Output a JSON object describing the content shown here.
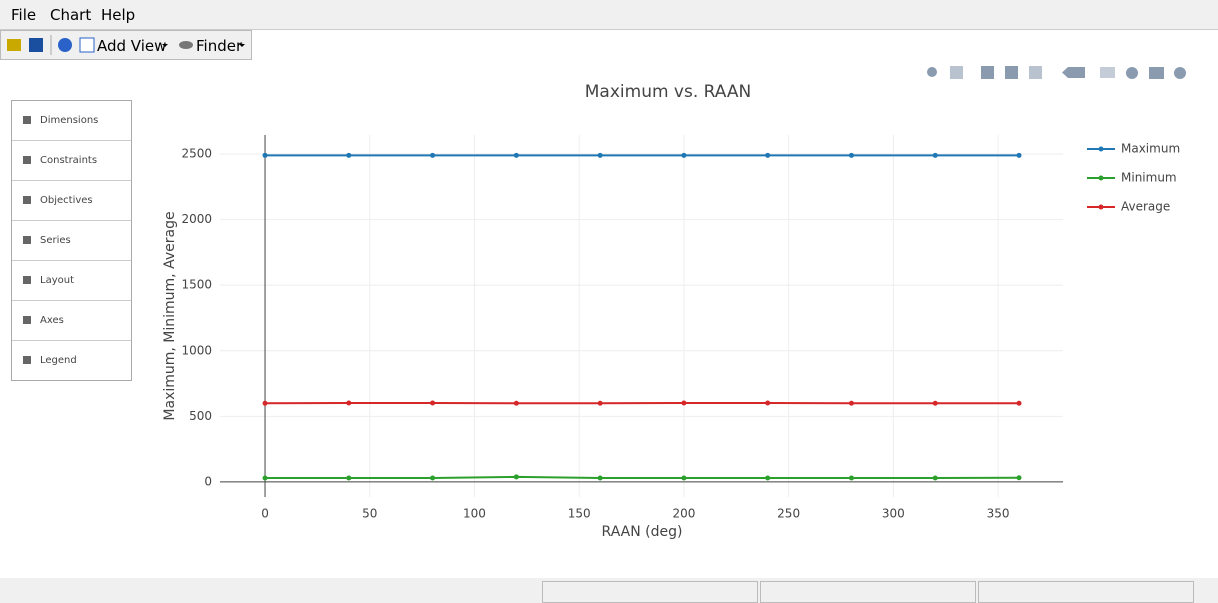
{
  "menu": [
    "File",
    "Chart",
    "Help"
  ],
  "toolbar": [
    "Add View",
    "Finder"
  ],
  "side_panel": [
    "Dimensions",
    "Constraints",
    "Objectives",
    "Series",
    "Layout",
    "Axes",
    "Legend"
  ],
  "chart_data": {
    "type": "line",
    "title": "Maximum vs. RAAN",
    "x_label": "RAAN (deg)",
    "y_label": "Maximum, Minimum, Average",
    "x": [
      0,
      40,
      80,
      120,
      160,
      200,
      240,
      280,
      320,
      360
    ],
    "series": [
      {
        "name": "Maximum",
        "color": "#1f77b4",
        "values": [
          2490,
          2490,
          2490,
          2490,
          2490,
          2490,
          2490,
          2490,
          2490,
          2490
        ]
      },
      {
        "name": "Minimum",
        "color": "#2ca02c",
        "values": [
          30,
          30,
          30,
          38,
          30,
          30,
          30,
          30,
          30,
          32
        ]
      },
      {
        "name": "Average",
        "color": "#d62728",
        "values": [
          600,
          602,
          602,
          600,
          600,
          602,
          602,
          600,
          600,
          600
        ]
      }
    ],
    "xlim": [
      -21.5,
      381
    ],
    "xticks": [
      0,
      50,
      100,
      150,
      200,
      250,
      300,
      350
    ],
    "ylim": [
      -115,
      2645
    ],
    "yticks": [
      0,
      500,
      1000,
      1500,
      2000,
      2500
    ],
    "grid": true,
    "legend": "right"
  }
}
